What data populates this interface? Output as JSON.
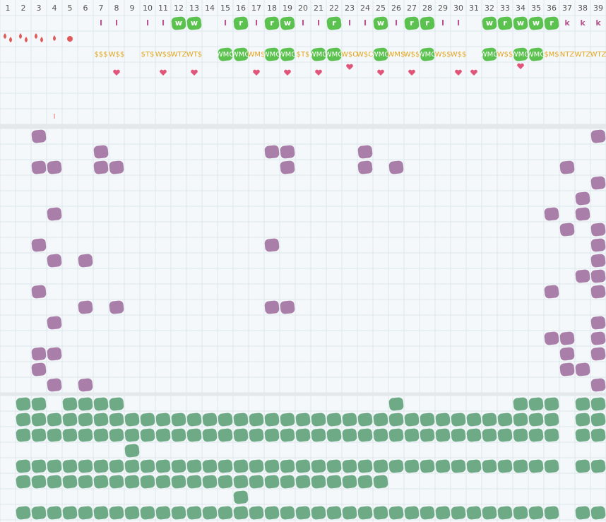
{
  "columns": [
    1,
    2,
    3,
    4,
    5,
    6,
    7,
    8,
    9,
    10,
    11,
    12,
    13,
    14,
    15,
    16,
    17,
    18,
    19,
    20,
    21,
    22,
    23,
    24,
    25,
    26,
    27,
    28,
    29,
    30,
    31,
    32,
    33,
    34,
    35,
    36,
    37,
    38,
    39
  ],
  "header_row_1": [
    {
      "col": 7,
      "text": "I"
    },
    {
      "col": 8,
      "text": "I"
    },
    {
      "col": 10,
      "text": "I"
    },
    {
      "col": 11,
      "text": "I"
    },
    {
      "col": 12,
      "text": "w",
      "highlight": true
    },
    {
      "col": 13,
      "text": "w",
      "highlight": true
    },
    {
      "col": 15,
      "text": "I"
    },
    {
      "col": 16,
      "text": "r",
      "highlight": true
    },
    {
      "col": 17,
      "text": "I"
    },
    {
      "col": 18,
      "text": "r",
      "highlight": true
    },
    {
      "col": 19,
      "text": "w",
      "highlight": true
    },
    {
      "col": 20,
      "text": "I"
    },
    {
      "col": 21,
      "text": "I"
    },
    {
      "col": 22,
      "text": "r",
      "highlight": true
    },
    {
      "col": 23,
      "text": "I"
    },
    {
      "col": 24,
      "text": "I"
    },
    {
      "col": 25,
      "text": "w",
      "highlight": true
    },
    {
      "col": 26,
      "text": "I"
    },
    {
      "col": 27,
      "text": "r",
      "highlight": true
    },
    {
      "col": 28,
      "text": "r",
      "highlight": true
    },
    {
      "col": 29,
      "text": "I"
    },
    {
      "col": 30,
      "text": "I"
    },
    {
      "col": 32,
      "text": "w",
      "highlight": true
    },
    {
      "col": 33,
      "text": "r",
      "highlight": true
    },
    {
      "col": 34,
      "text": "w",
      "highlight": true
    },
    {
      "col": 35,
      "text": "w",
      "highlight": true
    },
    {
      "col": 36,
      "text": "r",
      "highlight": true
    },
    {
      "col": 37,
      "text": "k"
    },
    {
      "col": 38,
      "text": "k"
    },
    {
      "col": 39,
      "text": "k"
    }
  ],
  "header_row_3": [
    {
      "col": 7,
      "text": "$$$"
    },
    {
      "col": 8,
      "text": "W$$"
    },
    {
      "col": 10,
      "text": "$T$"
    },
    {
      "col": 11,
      "text": "W$$"
    },
    {
      "col": 12,
      "text": "WTZ"
    },
    {
      "col": 13,
      "text": "WT$"
    },
    {
      "col": 15,
      "text": "WMO",
      "highlight": true
    },
    {
      "col": 16,
      "text": "WMO",
      "highlight": true
    },
    {
      "col": 17,
      "text": "WM$"
    },
    {
      "col": 18,
      "text": "WMO",
      "highlight": true
    },
    {
      "col": 19,
      "text": "WMO",
      "highlight": true
    },
    {
      "col": 20,
      "text": "$T$"
    },
    {
      "col": 21,
      "text": "WMO",
      "highlight": true
    },
    {
      "col": 22,
      "text": "WMO",
      "highlight": true
    },
    {
      "col": 23,
      "text": "W$O"
    },
    {
      "col": 24,
      "text": "W$O"
    },
    {
      "col": 25,
      "text": "WMO",
      "highlight": true
    },
    {
      "col": 26,
      "text": "WM$"
    },
    {
      "col": 27,
      "text": "W$$"
    },
    {
      "col": 28,
      "text": "WMO",
      "highlight": true
    },
    {
      "col": 29,
      "text": "W$$"
    },
    {
      "col": 30,
      "text": "W$$"
    },
    {
      "col": 32,
      "text": "WMO",
      "highlight": true
    },
    {
      "col": 33,
      "text": "W$$"
    },
    {
      "col": 34,
      "text": "WMO",
      "highlight": true
    },
    {
      "col": 35,
      "text": "WMO",
      "highlight": true
    },
    {
      "col": 36,
      "text": "$M$"
    },
    {
      "col": 37,
      "text": "NTZ"
    },
    {
      "col": 38,
      "text": "WTZ"
    },
    {
      "col": 39,
      "text": "WTZ"
    }
  ],
  "header_row_7": [
    {
      "col": 4,
      "text": "I"
    }
  ],
  "purple_rows": [
    [
      3,
      39
    ],
    [
      7,
      18,
      19,
      24
    ],
    [
      3,
      4,
      7,
      8,
      19,
      24,
      26,
      37
    ],
    [
      39
    ],
    [
      38
    ],
    [
      4,
      36,
      38
    ],
    [
      37,
      39
    ],
    [
      3,
      18,
      39
    ],
    [
      4,
      6,
      39
    ],
    [
      38,
      39
    ],
    [
      3,
      36,
      39
    ],
    [
      6,
      8,
      18,
      19
    ],
    [
      4,
      39
    ],
    [
      36,
      37,
      39
    ],
    [
      3,
      4,
      37,
      39
    ],
    [
      3,
      37,
      38
    ],
    [
      4,
      6,
      39
    ]
  ],
  "green_rows": [
    [
      2,
      3,
      5,
      6,
      7,
      8,
      26,
      34,
      35,
      36,
      38,
      39
    ],
    [
      2,
      3,
      4,
      5,
      6,
      7,
      8,
      9,
      10,
      11,
      12,
      13,
      14,
      15,
      16,
      17,
      18,
      19,
      20,
      21,
      22,
      23,
      24,
      25,
      26,
      27,
      28,
      29,
      30,
      31,
      32,
      33,
      34,
      35,
      36,
      38,
      39
    ],
    [
      2,
      3,
      4,
      5,
      6,
      7,
      8,
      9,
      10,
      11,
      12,
      13,
      14,
      15,
      16,
      17,
      18,
      19,
      20,
      21,
      22,
      23,
      24,
      25,
      26,
      27,
      28,
      29,
      30,
      31,
      32,
      33,
      34,
      35,
      36,
      38,
      39
    ],
    [
      9
    ],
    [
      2,
      3,
      4,
      5,
      6,
      7,
      8,
      9,
      10,
      11,
      12,
      13,
      14,
      15,
      16,
      17,
      18,
      19,
      20,
      21,
      22,
      23,
      24,
      25,
      26,
      27,
      28,
      29,
      30,
      31,
      32,
      33,
      34,
      35,
      36,
      38,
      39
    ],
    [
      2,
      3,
      4,
      5,
      6,
      7,
      8,
      9,
      10,
      11,
      12,
      13,
      14,
      15,
      16,
      17,
      18,
      19,
      20,
      21,
      22,
      23,
      24,
      25
    ],
    [
      16
    ],
    [
      2,
      3,
      4,
      5,
      6,
      7,
      8,
      9,
      10,
      11,
      12,
      13,
      14,
      15,
      16,
      17,
      18,
      19,
      20,
      21,
      22,
      23,
      24,
      25,
      26,
      27,
      28,
      29,
      30,
      31,
      32,
      33,
      34,
      35,
      36,
      38,
      39
    ]
  ]
}
